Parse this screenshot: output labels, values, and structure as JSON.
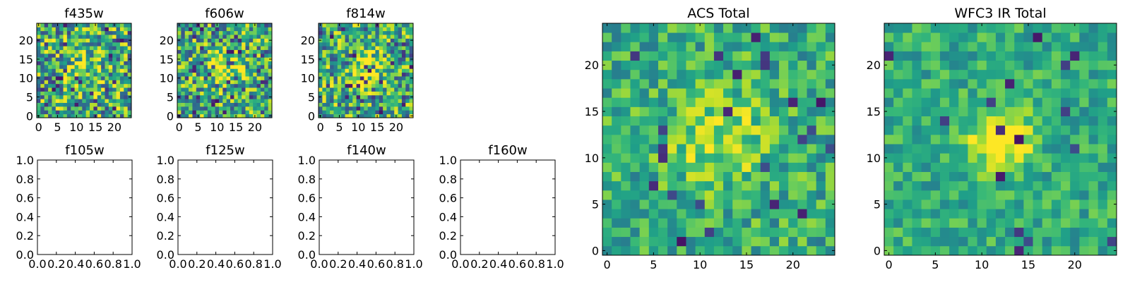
{
  "chart_data": [
    {
      "type": "heatmap",
      "title": "f435w",
      "colormap": "viridis",
      "size": 25,
      "xlim": [
        -0.5,
        24.5
      ],
      "ylim": [
        -0.5,
        24.5
      ],
      "xticks": [
        0,
        5,
        10,
        15,
        20
      ],
      "yticks": [
        0,
        5,
        10,
        15,
        20
      ],
      "seed": 11,
      "noise": 0.8,
      "peak": 0.15,
      "sigma": 4,
      "dark_frac": 0.07
    },
    {
      "type": "heatmap",
      "title": "f606w",
      "colormap": "viridis",
      "size": 25,
      "xlim": [
        -0.5,
        24.5
      ],
      "ylim": [
        -0.5,
        24.5
      ],
      "xticks": [
        0,
        5,
        10,
        15,
        20
      ],
      "yticks": [
        0,
        5,
        10,
        15,
        20
      ],
      "seed": 23,
      "noise": 0.75,
      "peak": 0.35,
      "sigma": 3,
      "dark_frac": 0.07
    },
    {
      "type": "heatmap",
      "title": "f814w",
      "colormap": "viridis",
      "size": 25,
      "xlim": [
        -0.5,
        24.5
      ],
      "ylim": [
        -0.5,
        24.5
      ],
      "xticks": [
        0,
        5,
        10,
        15,
        20
      ],
      "yticks": [
        0,
        5,
        10,
        15,
        20
      ],
      "seed": 37,
      "noise": 0.75,
      "peak": 0.4,
      "sigma": 3,
      "dark_frac": 0.06
    },
    {
      "type": "empty",
      "title": "f105w",
      "xlim": [
        0,
        1
      ],
      "ylim": [
        0,
        1
      ],
      "ticks": [
        "0.0",
        "0.2",
        "0.4",
        "0.6",
        "0.8",
        "1.0"
      ]
    },
    {
      "type": "empty",
      "title": "f125w",
      "xlim": [
        0,
        1
      ],
      "ylim": [
        0,
        1
      ],
      "ticks": [
        "0.0",
        "0.2",
        "0.4",
        "0.6",
        "0.8",
        "1.0"
      ]
    },
    {
      "type": "empty",
      "title": "f140w",
      "xlim": [
        0,
        1
      ],
      "ylim": [
        0,
        1
      ],
      "ticks": [
        "0.0",
        "0.2",
        "0.4",
        "0.6",
        "0.8",
        "1.0"
      ]
    },
    {
      "type": "empty",
      "title": "f160w",
      "xlim": [
        0,
        1
      ],
      "ylim": [
        0,
        1
      ],
      "ticks": [
        "0.0",
        "0.2",
        "0.4",
        "0.6",
        "0.8",
        "1.0"
      ]
    },
    {
      "type": "heatmap",
      "title": "ACS Total",
      "colormap": "viridis",
      "size": 25,
      "xlim": [
        -0.5,
        24.5
      ],
      "ylim": [
        -0.5,
        24.5
      ],
      "xticks": [
        0,
        5,
        10,
        15,
        20
      ],
      "yticks": [
        0,
        5,
        10,
        15,
        20
      ],
      "seed": 51,
      "noise": 0.45,
      "peak": 0.25,
      "sigma": 4,
      "dark_frac": 0.03
    },
    {
      "type": "heatmap",
      "title": "WFC3 IR Total",
      "colormap": "viridis",
      "size": 25,
      "xlim": [
        -0.5,
        24.5
      ],
      "ylim": [
        -0.5,
        24.5
      ],
      "xticks": [
        0,
        5,
        10,
        15,
        20
      ],
      "yticks": [
        0,
        5,
        10,
        15,
        20
      ],
      "seed": 67,
      "noise": 0.35,
      "peak": 0.55,
      "sigma": 2.2,
      "dark_frac": 0.025
    }
  ]
}
